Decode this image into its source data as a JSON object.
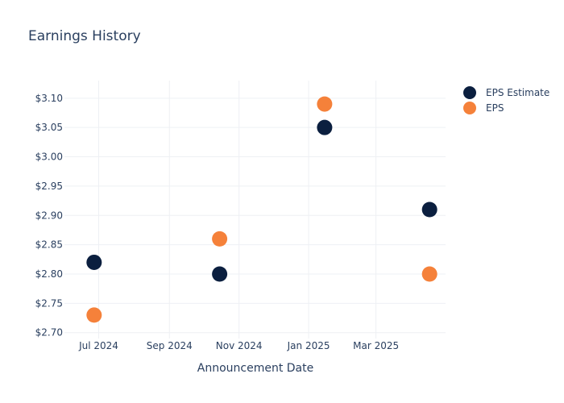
{
  "chart_data": {
    "type": "scatter",
    "title": "Earnings History",
    "xlabel": "Announcement Date",
    "ylabel": "",
    "x_ticks": [
      "Jul 2024",
      "Sep 2024",
      "Nov 2024",
      "Jan 2025",
      "Mar 2025"
    ],
    "x_tick_dates": [
      "2024-07-01",
      "2024-09-01",
      "2024-11-01",
      "2025-01-01",
      "2025-03-01"
    ],
    "xlim": [
      "2024-06-01",
      "2025-05-01"
    ],
    "y_ticks": [
      "$2.70",
      "$2.75",
      "$2.80",
      "$2.85",
      "$2.90",
      "$2.95",
      "$3.00",
      "$3.05",
      "$3.10"
    ],
    "ylim": [
      2.69,
      3.13
    ],
    "grid": true,
    "legend_position": "top-right",
    "series": [
      {
        "name": "EPS Estimate",
        "color": "#0b1f3f",
        "points": [
          {
            "x": "2024-06-27",
            "y": 2.82
          },
          {
            "x": "2024-10-15",
            "y": 2.8
          },
          {
            "x": "2025-01-15",
            "y": 3.05
          },
          {
            "x": "2025-04-17",
            "y": 2.91
          }
        ]
      },
      {
        "name": "EPS",
        "color": "#f5813a",
        "points": [
          {
            "x": "2024-06-27",
            "y": 2.73
          },
          {
            "x": "2024-10-15",
            "y": 2.86
          },
          {
            "x": "2025-01-15",
            "y": 3.09
          },
          {
            "x": "2025-04-17",
            "y": 2.8
          }
        ]
      }
    ]
  }
}
